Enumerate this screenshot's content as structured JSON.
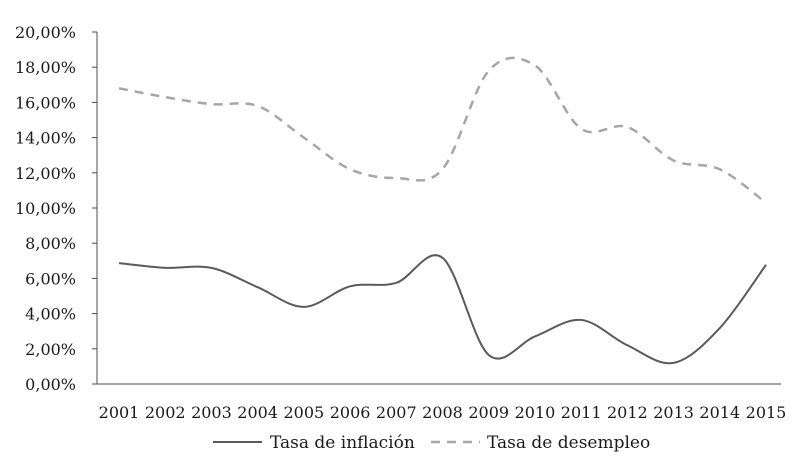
{
  "chart_data": {
    "type": "line",
    "categories": [
      "2001",
      "2002",
      "2003",
      "2004",
      "2005",
      "2006",
      "2007",
      "2008",
      "2009",
      "2010",
      "2011",
      "2012",
      "2013",
      "2014",
      "2015"
    ],
    "ylim": [
      0,
      0.2
    ],
    "yticks": [
      "0,00%",
      "2,00%",
      "4,00%",
      "6,00%",
      "8,00%",
      "10,00%",
      "12,00%",
      "14,00%",
      "16,00%",
      "18,00%",
      "20,00%"
    ],
    "grid": false,
    "legend_position": "bottom",
    "series": [
      {
        "name": "Tasa de inflación",
        "style": "solid",
        "color": "#5a5a5a",
        "values": [
          0.0687,
          0.066,
          0.066,
          0.055,
          0.0438,
          0.0555,
          0.0575,
          0.0717,
          0.0165,
          0.027,
          0.0364,
          0.022,
          0.012,
          0.0318,
          0.0677
        ]
      },
      {
        "name": "Tasa de desempleo",
        "style": "dashed",
        "color": "#a6a6a6",
        "values": [
          0.168,
          0.163,
          0.159,
          0.158,
          0.14,
          0.122,
          0.117,
          0.122,
          0.178,
          0.181,
          0.145,
          0.146,
          0.127,
          0.122,
          0.103
        ]
      }
    ]
  }
}
